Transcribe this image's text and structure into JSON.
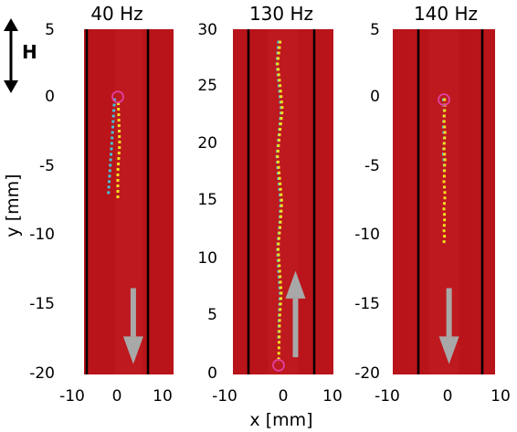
{
  "chart_data": [
    {
      "type": "scatter",
      "title": "40 Hz",
      "xlim": [
        -10,
        10
      ],
      "ylim": [
        -20,
        5
      ],
      "xticks": [
        "-10",
        "0",
        "10"
      ],
      "yticks": [
        "5",
        "0",
        "-5",
        "-10",
        "-15",
        "-20"
      ],
      "arrow_direction": "down",
      "series": [
        {
          "color": "#44c4d8",
          "x": [
            -0.6,
            -0.7,
            -0.8,
            -0.9,
            -1.0,
            -1.1,
            -1.2,
            -1.3,
            -1.4,
            -1.5,
            -1.6,
            -1.7,
            -1.8,
            -1.9,
            -2.0
          ],
          "y": [
            0,
            -0.5,
            -1,
            -1.5,
            -2,
            -2.5,
            -3,
            -3.5,
            -4,
            -4.5,
            -5,
            -5.5,
            -6,
            -6.5,
            -7
          ]
        },
        {
          "color": "#f2e020",
          "x": [
            0.2,
            0.25,
            0.3,
            0.35,
            0.4,
            0.45,
            0.5,
            0.4,
            0.3,
            0.2,
            0.1,
            0.1,
            0.1,
            0.1,
            0.1,
            0.1
          ],
          "y": [
            -0.3,
            -0.8,
            -1.3,
            -1.8,
            -2.3,
            -2.8,
            -3.3,
            -3.8,
            -4.3,
            -4.8,
            -5.3,
            -5.8,
            -6.3,
            -6.8,
            -7.2,
            -7.4
          ]
        }
      ],
      "markers": [
        {
          "x": 0.1,
          "y": 0.1
        }
      ]
    },
    {
      "type": "scatter",
      "title": "130 Hz",
      "xlim": [
        -10,
        10
      ],
      "ylim": [
        0,
        30
      ],
      "xticks": [
        "-10",
        "0",
        "10"
      ],
      "yticks": [
        "30",
        "25",
        "20",
        "15",
        "10",
        "5",
        "0"
      ],
      "arrow_direction": "up",
      "series": [
        {
          "color": "#44c4d8",
          "x": [
            0.0,
            -0.3,
            0.1,
            0.5,
            0.1,
            -0.3,
            0.0,
            0.4,
            0.2,
            -0.2,
            0.0,
            0.3,
            0.1,
            0.0
          ],
          "y": [
            29,
            27,
            25,
            23,
            21,
            19,
            17,
            15,
            13,
            11,
            9,
            7,
            5,
            3
          ]
        },
        {
          "color": "#f2e020",
          "x": [
            0.3,
            -0.2,
            0.3,
            0.7,
            0.2,
            -0.2,
            0.2,
            0.6,
            0.3,
            -0.1,
            0.2,
            0.5,
            0.2,
            0.0
          ],
          "y": [
            29,
            27,
            25,
            23,
            21,
            19,
            17,
            15,
            13,
            11,
            9,
            7,
            5,
            1
          ]
        }
      ],
      "markers": [
        {
          "x": 0.0,
          "y": 0.8
        }
      ]
    },
    {
      "type": "scatter",
      "title": "140 Hz",
      "xlim": [
        -10,
        10
      ],
      "ylim": [
        -20,
        5
      ],
      "xticks": [
        "-10",
        "0",
        "10"
      ],
      "yticks": [
        "5",
        "0",
        "-5",
        "-10",
        "-15",
        "-20"
      ],
      "arrow_direction": "down",
      "series": [
        {
          "color": "#44c4d8",
          "x": [
            -0.1,
            0.0,
            0.1,
            0.0,
            -0.1,
            0.0,
            0.1,
            0.0,
            -0.1,
            0.0,
            0.1,
            0.0
          ],
          "y": [
            0,
            -0.5,
            -1,
            -1.5,
            -2,
            -2.5,
            -3,
            -3.5,
            -4,
            -4.5,
            -5,
            -5.5
          ]
        },
        {
          "color": "#f2e020",
          "x": [
            0.1,
            0.2,
            0.1,
            0.0,
            0.1,
            0.2,
            0.1,
            0.0,
            0.1,
            0.2,
            0.1,
            0.1,
            0.0,
            0.1,
            0.2,
            0.1,
            0.0,
            0.1,
            0.1,
            0.0,
            0.1,
            0.0
          ],
          "y": [
            0,
            -0.5,
            -1,
            -1.5,
            -2,
            -2.5,
            -3,
            -3.5,
            -4,
            -4.5,
            -5,
            -5.5,
            -6,
            -6.5,
            -7,
            -7.5,
            -8,
            -8.5,
            -9,
            -9.5,
            -10,
            -10.5
          ]
        }
      ],
      "markers": [
        {
          "x": 0.0,
          "y": -0.1
        }
      ]
    }
  ],
  "xlabel": "x [mm]",
  "ylabel": "y [mm]",
  "h_label": "H",
  "colors": {
    "background": "#b8141a",
    "arrow": "#a8a8a8",
    "marker": "#e040a0",
    "divider": "#000000"
  }
}
